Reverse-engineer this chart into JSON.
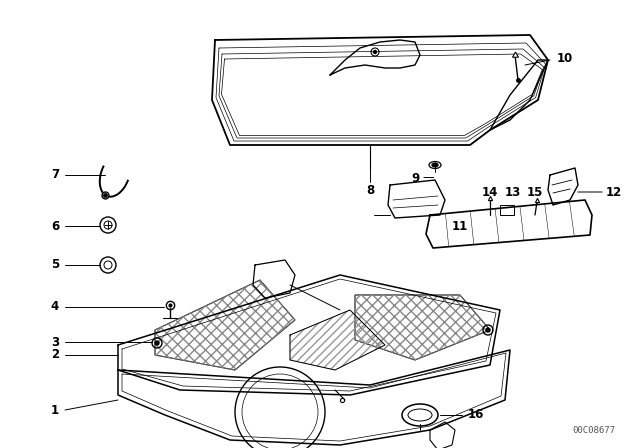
{
  "watermark": "00C08677",
  "background_color": "#ffffff",
  "line_color": "#000000",
  "fig_width": 6.4,
  "fig_height": 4.48,
  "dpi": 100
}
